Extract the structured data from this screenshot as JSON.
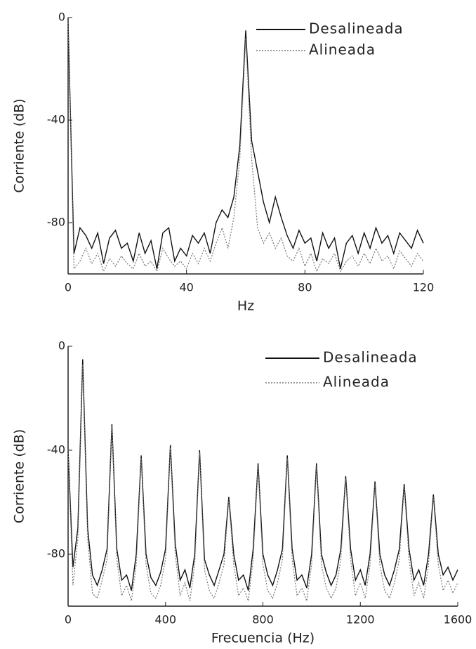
{
  "chart_data": [
    {
      "type": "line",
      "xlabel": "Hz",
      "ylabel": "Corriente (dB)",
      "xlim": [
        0,
        120
      ],
      "xticks": [
        0,
        40,
        80,
        120
      ],
      "ylim": [
        -100,
        0
      ],
      "yticks": [
        0,
        -40,
        -80
      ],
      "x": [
        0,
        2,
        4,
        6,
        8,
        10,
        12,
        14,
        16,
        18,
        20,
        22,
        24,
        26,
        28,
        30,
        32,
        34,
        36,
        38,
        40,
        42,
        44,
        46,
        48,
        50,
        52,
        54,
        56,
        58,
        60,
        62,
        64,
        66,
        68,
        70,
        72,
        74,
        76,
        78,
        80,
        82,
        84,
        86,
        88,
        90,
        92,
        94,
        96,
        98,
        100,
        102,
        104,
        106,
        108,
        110,
        112,
        114,
        116,
        118,
        120
      ],
      "series": [
        {
          "name": "Desalineada",
          "color": "#111111",
          "dashed": false,
          "values": [
            -2,
            -92,
            -82,
            -85,
            -90,
            -84,
            -96,
            -86,
            -83,
            -90,
            -88,
            -95,
            -84,
            -92,
            -87,
            -98,
            -84,
            -82,
            -95,
            -90,
            -93,
            -85,
            -88,
            -84,
            -92,
            -80,
            -75,
            -78,
            -70,
            -50,
            -5,
            -48,
            -60,
            -72,
            -80,
            -70,
            -78,
            -85,
            -90,
            -83,
            -88,
            -86,
            -95,
            -84,
            -90,
            -86,
            -98,
            -88,
            -85,
            -92,
            -84,
            -90,
            -82,
            -88,
            -85,
            -92,
            -84,
            -87,
            -90,
            -83,
            -88
          ]
        },
        {
          "name": "Alineada",
          "color": "#777777",
          "dashed": true,
          "values": [
            -2,
            -98,
            -95,
            -90,
            -96,
            -92,
            -99,
            -94,
            -97,
            -93,
            -96,
            -98,
            -92,
            -97,
            -95,
            -99,
            -90,
            -94,
            -97,
            -95,
            -98,
            -92,
            -96,
            -90,
            -95,
            -88,
            -82,
            -90,
            -78,
            -55,
            -8,
            -55,
            -82,
            -88,
            -84,
            -90,
            -86,
            -93,
            -95,
            -90,
            -97,
            -92,
            -99,
            -94,
            -96,
            -92,
            -99,
            -95,
            -93,
            -97,
            -92,
            -96,
            -90,
            -95,
            -93,
            -98,
            -91,
            -94,
            -97,
            -92,
            -95
          ]
        }
      ]
    },
    {
      "type": "line",
      "xlabel": "Frecuencia (Hz)",
      "ylabel": "Corriente (dB)",
      "xlim": [
        0,
        1600
      ],
      "xticks": [
        0,
        400,
        800,
        {
          "value": 1200,
          "label": "1200"
        },
        {
          "value": 1600,
          "label": "1600"
        }
      ],
      "ylim": [
        -100,
        0
      ],
      "yticks": [
        0,
        -40,
        -80
      ],
      "x": [
        0,
        20,
        40,
        60,
        80,
        100,
        120,
        140,
        160,
        180,
        200,
        220,
        240,
        260,
        280,
        300,
        320,
        340,
        360,
        380,
        400,
        420,
        440,
        460,
        480,
        500,
        520,
        540,
        560,
        580,
        600,
        620,
        640,
        660,
        680,
        700,
        720,
        740,
        760,
        780,
        800,
        820,
        840,
        860,
        880,
        900,
        920,
        940,
        960,
        980,
        1000,
        1020,
        1040,
        1060,
        1080,
        1100,
        1120,
        1140,
        1160,
        1180,
        1200,
        1220,
        1240,
        1260,
        1280,
        1300,
        1320,
        1340,
        1360,
        1380,
        1400,
        1420,
        1440,
        1460,
        1480,
        1500,
        1520,
        1540,
        1560,
        1580,
        1600
      ],
      "series": [
        {
          "name": "Desalineada",
          "color": "#111111",
          "dashed": false,
          "values": [
            -40,
            -85,
            -70,
            -5,
            -70,
            -88,
            -92,
            -86,
            -78,
            -30,
            -78,
            -90,
            -88,
            -94,
            -80,
            -42,
            -80,
            -89,
            -92,
            -87,
            -78,
            -38,
            -76,
            -90,
            -86,
            -93,
            -80,
            -40,
            -82,
            -88,
            -92,
            -86,
            -80,
            -58,
            -80,
            -90,
            -88,
            -94,
            -78,
            -45,
            -80,
            -88,
            -92,
            -86,
            -78,
            -42,
            -78,
            -90,
            -88,
            -93,
            -80,
            -45,
            -80,
            -87,
            -92,
            -88,
            -78,
            -50,
            -78,
            -90,
            -86,
            -92,
            -80,
            -52,
            -80,
            -88,
            -92,
            -86,
            -78,
            -53,
            -78,
            -90,
            -86,
            -92,
            -80,
            -57,
            -80,
            -88,
            -85,
            -90,
            -86
          ]
        },
        {
          "name": "Alineada",
          "color": "#777777",
          "dashed": true,
          "values": [
            -40,
            -92,
            -74,
            -7,
            -74,
            -95,
            -97,
            -90,
            -82,
            -31,
            -82,
            -96,
            -92,
            -98,
            -84,
            -43,
            -84,
            -95,
            -97,
            -92,
            -82,
            -39,
            -80,
            -96,
            -91,
            -98,
            -84,
            -41,
            -86,
            -94,
            -97,
            -91,
            -84,
            -59,
            -84,
            -96,
            -93,
            -98,
            -82,
            -46,
            -84,
            -94,
            -97,
            -91,
            -82,
            -43,
            -82,
            -96,
            -93,
            -98,
            -84,
            -46,
            -84,
            -93,
            -97,
            -93,
            -82,
            -51,
            -82,
            -96,
            -91,
            -97,
            -84,
            -53,
            -84,
            -94,
            -97,
            -91,
            -82,
            -54,
            -82,
            -96,
            -91,
            -97,
            -84,
            -58,
            -84,
            -94,
            -90,
            -95,
            -91
          ]
        }
      ]
    }
  ]
}
